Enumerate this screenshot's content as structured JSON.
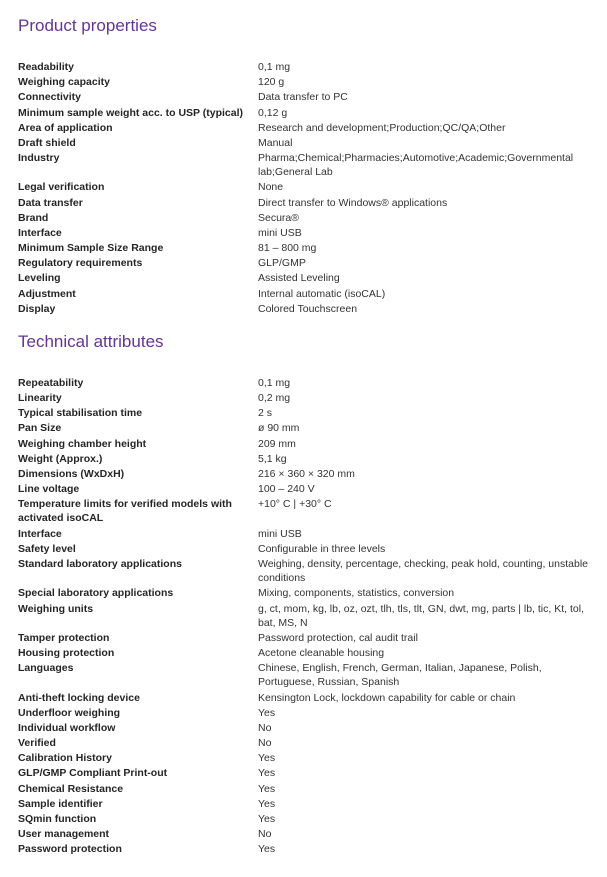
{
  "sections": {
    "product": {
      "title": "Product properties",
      "rows": [
        {
          "label": "Readability",
          "value": "0,1 mg"
        },
        {
          "label": "Weighing capacity",
          "value": "120 g"
        },
        {
          "label": "Connectivity",
          "value": "Data transfer to PC"
        },
        {
          "label": "Minimum sample weight acc. to USP (typical)",
          "value": "0,12 g"
        },
        {
          "label": "Area of application",
          "value": "Research and development;Production;QC/QA;Other"
        },
        {
          "label": "Draft shield",
          "value": "Manual"
        },
        {
          "label": "Industry",
          "value": "Pharma;Chemical;Pharmacies;Automotive;Academic;Governmental lab;General Lab"
        },
        {
          "label": "Legal verification",
          "value": "None"
        },
        {
          "label": "Data transfer",
          "value": "Direct transfer to Windows® applications"
        },
        {
          "label": "Brand",
          "value": "Secura®"
        },
        {
          "label": "Interface",
          "value": "mini USB"
        },
        {
          "label": "Minimum Sample Size Range",
          "value": "81 – 800 mg"
        },
        {
          "label": "Regulatory requirements",
          "value": "GLP/GMP"
        },
        {
          "label": "Leveling",
          "value": "Assisted Leveling"
        },
        {
          "label": "Adjustment",
          "value": "Internal automatic (isoCAL)"
        },
        {
          "label": "Display",
          "value": "Colored Touchscreen"
        }
      ]
    },
    "technical": {
      "title": "Technical attributes",
      "rows": [
        {
          "label": "Repeatability",
          "value": "0,1 mg"
        },
        {
          "label": "Linearity",
          "value": "0,2 mg"
        },
        {
          "label": "Typical stabilisation time",
          "value": "2 s"
        },
        {
          "label": "Pan Size",
          "value": "ø 90 mm"
        },
        {
          "label": "Weighing chamber height",
          "value": "209 mm"
        },
        {
          "label": "Weight (Approx.)",
          "value": "5,1 kg"
        },
        {
          "label": "Dimensions (WxDxH)",
          "value": "216 × 360 × 320 mm"
        },
        {
          "label": "Line voltage",
          "value": "100 – 240 V"
        },
        {
          "label": "Temperature limits for verified models with activated isoCAL",
          "value": "+10° C | +30° C"
        },
        {
          "label": "Interface",
          "value": "mini USB"
        },
        {
          "label": "Safety level",
          "value": "Configurable in three levels"
        },
        {
          "label": "Standard laboratory applications",
          "value": "Weighing, density, percentage, checking, peak hold, counting, unstable conditions"
        },
        {
          "label": "Special laboratory applications",
          "value": "Mixing, components, statistics, conversion"
        },
        {
          "label": "Weighing units",
          "value": "g, ct, mom, kg, lb, oz, ozt, tlh, tls, tlt, GN, dwt, mg, parts | lb, tic, Kt, tol, bat, MS, N"
        },
        {
          "label": "Tamper protection",
          "value": "Password protection, cal audit trail"
        },
        {
          "label": "Housing protection",
          "value": "Acetone cleanable housing"
        },
        {
          "label": "Languages",
          "value": "Chinese, English, French, German, Italian, Japanese, Polish, Portuguese, Russian, Spanish"
        },
        {
          "label": "Anti-theft locking device",
          "value": "Kensington Lock, lockdown capability for cable or chain"
        },
        {
          "label": "Underfloor weighing",
          "value": "Yes"
        },
        {
          "label": "Individual workflow",
          "value": "No"
        },
        {
          "label": "Verified",
          "value": "No"
        },
        {
          "label": "Calibration History",
          "value": "Yes"
        },
        {
          "label": "GLP/GMP Compliant Print-out",
          "value": "Yes"
        },
        {
          "label": "Chemical Resistance",
          "value": "Yes"
        },
        {
          "label": "Sample identifier",
          "value": "Yes"
        },
        {
          "label": "SQmin function",
          "value": "Yes"
        },
        {
          "label": "User management",
          "value": "No"
        },
        {
          "label": "Password protection",
          "value": "Yes"
        }
      ]
    }
  }
}
